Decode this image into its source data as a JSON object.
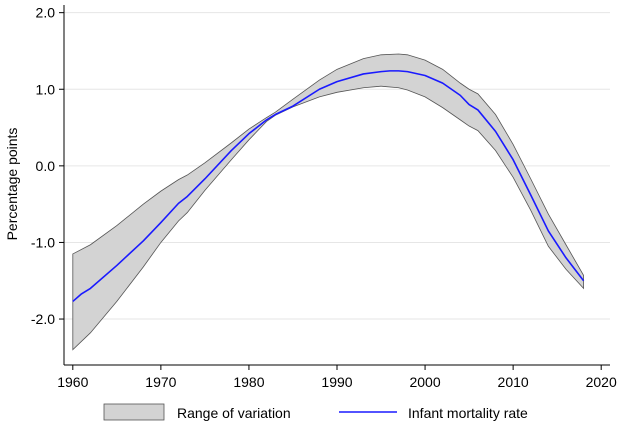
{
  "chart_data": {
    "type": "area",
    "xlabel": "",
    "ylabel": "Percentage points",
    "xlim": [
      1959,
      2021
    ],
    "ylim": [
      -2.6,
      2.1
    ],
    "x_ticks": [
      1960,
      1970,
      1980,
      1990,
      2000,
      2010,
      2020
    ],
    "x_tick_labels": [
      "1960",
      "1970",
      "1980",
      "1990",
      "2000",
      "2010",
      "2020"
    ],
    "y_ticks": [
      2.0,
      1.0,
      0.0,
      -1.0,
      -2.0
    ],
    "y_tick_labels": [
      "2.0",
      "1.0",
      "0.0",
      "-1.0",
      "-2.0"
    ],
    "grid": "horizontal",
    "legend_position": "bottom",
    "band": {
      "name": "Range of variation",
      "color": "#d3d3d3",
      "edge_color": "#555555",
      "x": [
        1960,
        1962,
        1965,
        1968,
        1970,
        1972,
        1973,
        1975,
        1978,
        1980,
        1982,
        1983,
        1985,
        1988,
        1990,
        1993,
        1995,
        1997,
        1998,
        2000,
        2002,
        2004,
        2005,
        2006,
        2008,
        2010,
        2012,
        2014,
        2016,
        2018
      ],
      "upper": [
        -1.15,
        -1.03,
        -0.78,
        -0.5,
        -0.33,
        -0.18,
        -0.12,
        0.04,
        0.3,
        0.48,
        0.63,
        0.7,
        0.87,
        1.12,
        1.26,
        1.4,
        1.45,
        1.46,
        1.45,
        1.38,
        1.26,
        1.08,
        1.0,
        0.94,
        0.67,
        0.28,
        -0.17,
        -0.63,
        -1.03,
        -1.43
      ],
      "lower": [
        -2.4,
        -2.18,
        -1.77,
        -1.32,
        -1.0,
        -0.72,
        -0.61,
        -0.32,
        0.08,
        0.34,
        0.58,
        0.66,
        0.77,
        0.9,
        0.96,
        1.02,
        1.04,
        1.02,
        0.99,
        0.9,
        0.76,
        0.6,
        0.52,
        0.46,
        0.2,
        -0.15,
        -0.58,
        -1.05,
        -1.35,
        -1.6
      ]
    },
    "series": [
      {
        "name": "Infant mortality rate",
        "color": "#1a1aff",
        "x": [
          1960,
          1961,
          1962,
          1965,
          1968,
          1970,
          1972,
          1973,
          1975,
          1978,
          1980,
          1982,
          1983,
          1985,
          1988,
          1990,
          1993,
          1995,
          1996,
          1997,
          1998,
          2000,
          2002,
          2004,
          2005,
          2006,
          2008,
          2010,
          2012,
          2014,
          2016,
          2018
        ],
        "values": [
          -1.77,
          -1.67,
          -1.6,
          -1.3,
          -0.98,
          -0.74,
          -0.49,
          -0.4,
          -0.17,
          0.2,
          0.42,
          0.6,
          0.67,
          0.78,
          1.0,
          1.1,
          1.2,
          1.23,
          1.24,
          1.24,
          1.23,
          1.18,
          1.08,
          0.92,
          0.8,
          0.73,
          0.45,
          0.08,
          -0.38,
          -0.85,
          -1.2,
          -1.5
        ]
      }
    ]
  }
}
